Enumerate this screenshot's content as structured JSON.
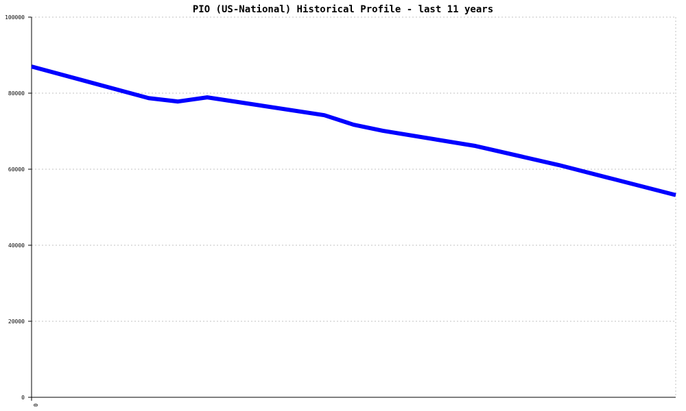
{
  "chart_data": {
    "type": "line",
    "title": "PIO (US-National) Historical Profile - last 11 years",
    "xlabel": "",
    "ylabel": "",
    "x_tick_labels": [
      "0"
    ],
    "x": [
      0,
      24,
      30,
      36,
      60,
      66,
      72,
      91,
      108,
      132
    ],
    "xlim": [
      0,
      132
    ],
    "ylim": [
      0,
      100000
    ],
    "y_ticks": [
      0,
      20000,
      40000,
      60000,
      80000,
      100000
    ],
    "grid": true,
    "series": [
      {
        "values": [
          87000,
          78700,
          77800,
          78900,
          74200,
          71700,
          70100,
          66100,
          61100,
          53200
        ],
        "color": "#0000ff"
      }
    ]
  }
}
